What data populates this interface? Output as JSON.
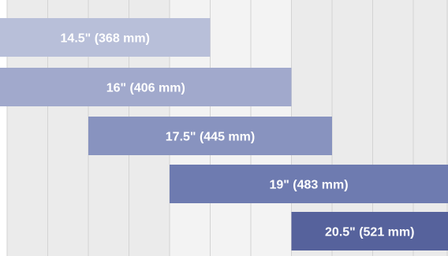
{
  "chart_data": {
    "type": "bar",
    "orientation": "horizontal-range",
    "grid": "vertical",
    "legend": "none",
    "bars": [
      {
        "label": "14.5\" (368 mm)",
        "start": 0,
        "end": 5,
        "color": "#b8bfd9"
      },
      {
        "label": "16\" (406 mm)",
        "start": 0,
        "end": 7,
        "color": "#a1a9cc"
      },
      {
        "label": "17.5\" (445 mm)",
        "start": 2,
        "end": 8,
        "color": "#8893bf"
      },
      {
        "label": "19\" (483 mm)",
        "start": 4,
        "end": 11,
        "color": "#6e7bb0"
      },
      {
        "label": "20.5\" (521 mm)",
        "start": 7,
        "end": 11,
        "color": "#56629c"
      }
    ],
    "column_shading": [
      "#ebebeb",
      "#ebebeb",
      "#ebebeb",
      "#ebebeb",
      "#f3f3f3",
      "#f3f3f3",
      "#f3f3f3",
      "#ebebeb",
      "#ebebeb",
      "#ebebeb",
      "#ebebeb"
    ],
    "grid_line_color": "#d3d3d3"
  }
}
